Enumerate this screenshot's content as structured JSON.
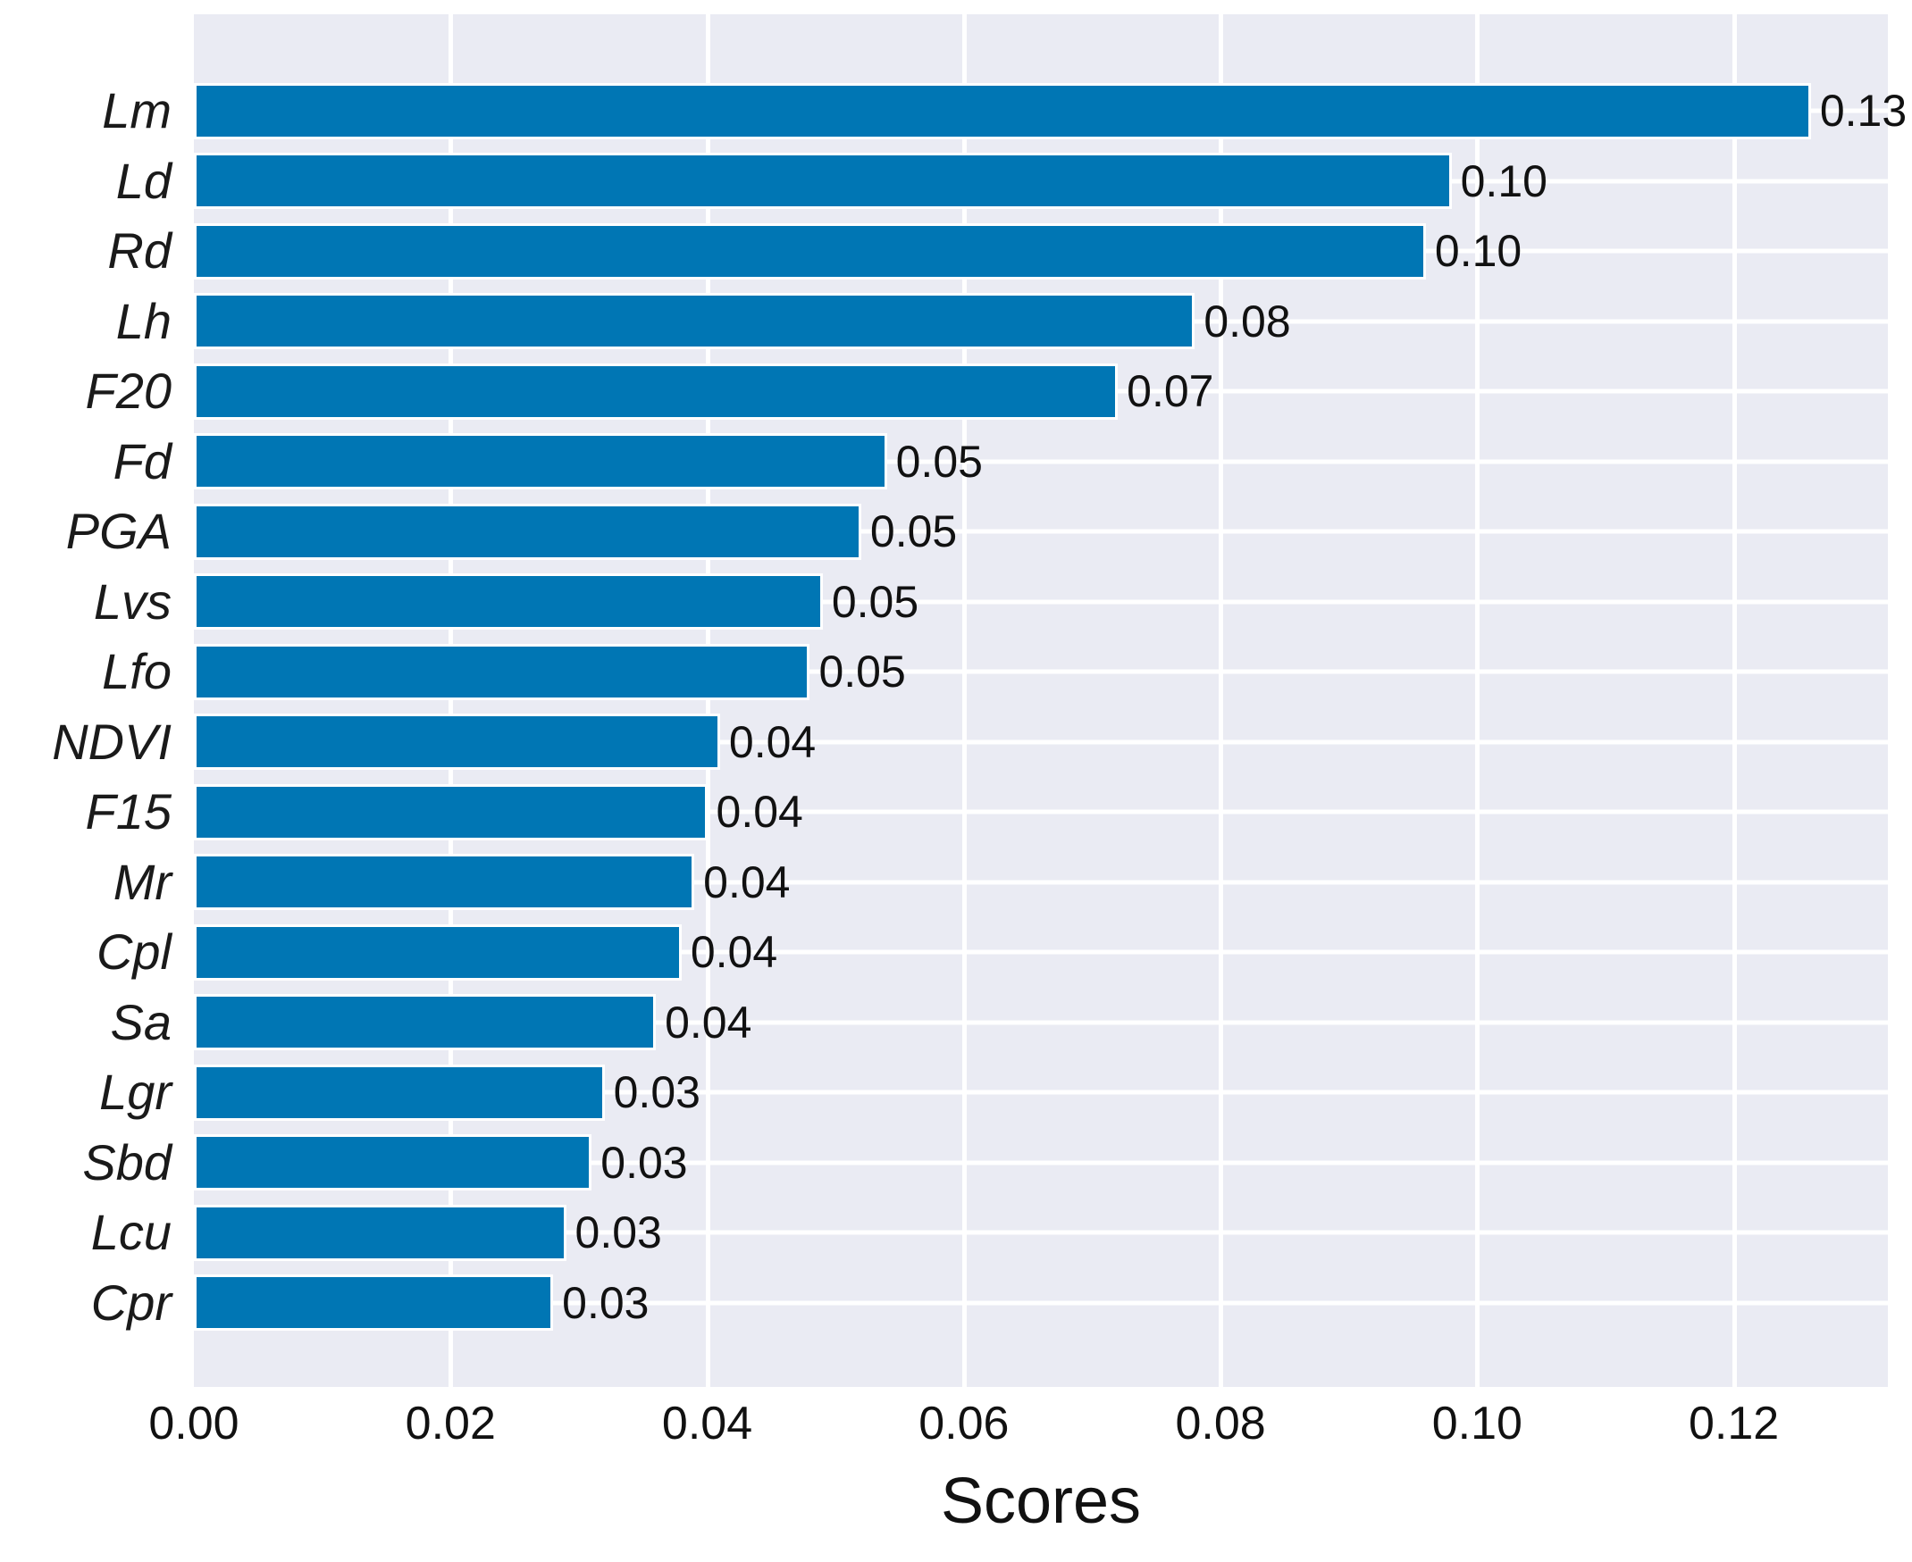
{
  "chart_data": {
    "type": "bar",
    "orientation": "horizontal",
    "title": "",
    "xlabel": "Scores",
    "ylabel": "",
    "xlim": [
      0,
      0.132
    ],
    "grid": true,
    "legend_position": "none",
    "categories": [
      "Lm",
      "Ld",
      "Rd",
      "Lh",
      "F20",
      "Fd",
      "PGA",
      "Lvs",
      "Lfo",
      "NDVI",
      "F15",
      "Mr",
      "Cpl",
      "Sa",
      "Lgr",
      "Sbd",
      "Lcu",
      "Cpr"
    ],
    "values": [
      0.126,
      0.098,
      0.096,
      0.078,
      0.072,
      0.054,
      0.052,
      0.049,
      0.048,
      0.041,
      0.04,
      0.039,
      0.038,
      0.036,
      0.032,
      0.031,
      0.029,
      0.028
    ],
    "bar_labels": [
      "0.13",
      "0.10",
      "0.10",
      "0.08",
      "0.07",
      "0.05",
      "0.05",
      "0.05",
      "0.05",
      "0.04",
      "0.04",
      "0.04",
      "0.04",
      "0.04",
      "0.03",
      "0.03",
      "0.03",
      "0.03"
    ],
    "xticks": {
      "values": [
        0.0,
        0.02,
        0.04,
        0.06,
        0.08,
        0.1,
        0.12
      ],
      "labels": [
        "0.00",
        "0.02",
        "0.04",
        "0.06",
        "0.08",
        "0.10",
        "0.12"
      ]
    }
  },
  "style": {
    "bar_color": "#0076b4",
    "plot_background": "#eaebf3",
    "grid_color": "#ffffff",
    "text_color": "#1a1a1a",
    "figure_background": "#ffffff"
  }
}
